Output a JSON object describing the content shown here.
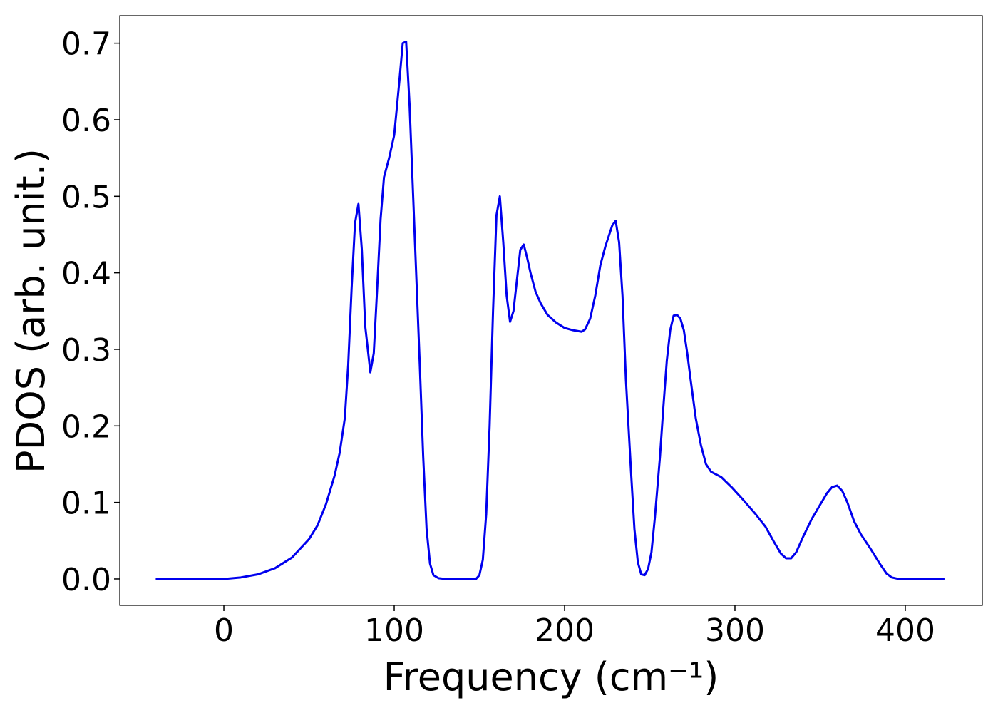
{
  "chart_data": {
    "type": "line",
    "xlabel": "Frequency (cm⁻¹)",
    "ylabel": "PDOS (arb. unit.)",
    "x": [
      -40,
      0,
      10,
      20,
      30,
      40,
      50,
      55,
      60,
      65,
      68,
      71,
      73,
      75,
      77,
      79,
      81,
      83,
      86,
      88,
      90,
      92,
      94,
      97,
      100,
      103,
      105,
      107,
      109,
      112,
      115,
      117,
      119,
      121,
      123,
      126,
      130,
      148,
      150,
      152,
      154,
      156,
      158,
      160,
      162,
      164,
      166,
      168,
      170,
      172,
      174,
      176,
      178,
      180,
      183,
      186,
      190,
      195,
      200,
      205,
      210,
      212,
      215,
      218,
      221,
      224,
      228,
      230,
      232,
      234,
      236,
      239,
      241,
      243,
      245,
      247,
      249,
      251,
      253,
      256,
      258,
      260,
      262,
      264,
      266,
      268,
      270,
      272,
      274,
      277,
      280,
      283,
      286,
      292,
      298,
      305,
      312,
      318,
      323,
      327,
      330,
      333,
      336,
      340,
      345,
      350,
      354,
      357,
      360,
      363,
      366,
      370,
      374,
      380,
      385,
      389,
      392,
      396,
      423
    ],
    "series": [
      {
        "name": "PDOS",
        "color": "#0000ee",
        "values": [
          0,
          0,
          0.002,
          0.006,
          0.014,
          0.028,
          0.052,
          0.07,
          0.098,
          0.135,
          0.165,
          0.21,
          0.28,
          0.38,
          0.465,
          0.49,
          0.43,
          0.33,
          0.27,
          0.295,
          0.38,
          0.47,
          0.525,
          0.55,
          0.58,
          0.65,
          0.7,
          0.702,
          0.62,
          0.45,
          0.28,
          0.16,
          0.065,
          0.02,
          0.005,
          0.001,
          0,
          0,
          0.005,
          0.025,
          0.085,
          0.2,
          0.35,
          0.475,
          0.5,
          0.44,
          0.37,
          0.336,
          0.35,
          0.39,
          0.43,
          0.437,
          0.42,
          0.4,
          0.375,
          0.36,
          0.345,
          0.335,
          0.328,
          0.325,
          0.323,
          0.326,
          0.34,
          0.37,
          0.41,
          0.435,
          0.462,
          0.468,
          0.44,
          0.37,
          0.26,
          0.14,
          0.065,
          0.022,
          0.006,
          0.005,
          0.013,
          0.035,
          0.08,
          0.16,
          0.225,
          0.285,
          0.325,
          0.344,
          0.345,
          0.34,
          0.325,
          0.295,
          0.26,
          0.21,
          0.175,
          0.15,
          0.14,
          0.133,
          0.12,
          0.103,
          0.085,
          0.068,
          0.048,
          0.033,
          0.027,
          0.027,
          0.035,
          0.055,
          0.078,
          0.097,
          0.112,
          0.12,
          0.122,
          0.115,
          0.1,
          0.075,
          0.058,
          0.038,
          0.02,
          0.007,
          0.002,
          0,
          0
        ]
      }
    ],
    "xlim": [
      -61.1,
      445.2
    ],
    "ylim": [
      -0.0345,
      0.736
    ],
    "xticks": [
      0,
      100,
      200,
      300,
      400
    ],
    "yticks": [
      {
        "value": 0,
        "label": "0.0"
      },
      0.1,
      0.2,
      0.3,
      0.4,
      0.5,
      0.6,
      0.7
    ]
  }
}
